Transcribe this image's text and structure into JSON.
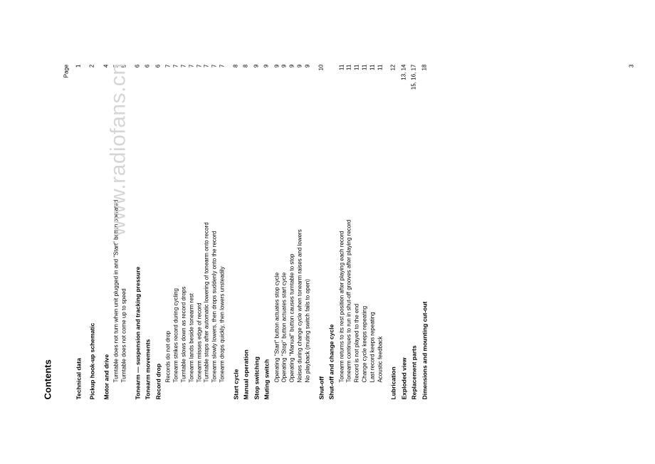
{
  "title": "Contents",
  "page_label": "Page",
  "watermark": "www.radiofans.cn",
  "footer_page": "3",
  "entries": [
    {
      "label": "Technical data",
      "page": "1",
      "cls": "bold",
      "gap": "m"
    },
    {
      "label": "Pickup hook-up schematic",
      "page": "2",
      "cls": "bold",
      "gap": "m"
    },
    {
      "label": "Motor and drive",
      "page": "4",
      "cls": "bold",
      "gap": "m"
    },
    {
      "label": "Turntable does not turn when unit plugged in and \"Start\" button operated",
      "page": "5",
      "cls": "indent1",
      "gap": "s"
    },
    {
      "label": "Turntable does not come up to speed",
      "page": "5",
      "cls": "indent1",
      "gap": ""
    },
    {
      "label": "Tonearm — suspension and tracking pressure",
      "page": "6",
      "cls": "bold",
      "gap": "m"
    },
    {
      "label": "Tonearm movements",
      "page": "6",
      "cls": "bold",
      "gap": "s"
    },
    {
      "label": "Record drop",
      "page": "6",
      "cls": "bold",
      "gap": "s"
    },
    {
      "label": "Records do not drop",
      "page": "7",
      "cls": "indent1",
      "gap": "s"
    },
    {
      "label": "Tonearm strikes record during cycling",
      "page": "7",
      "cls": "indent1",
      "gap": ""
    },
    {
      "label": "Turntable slows down as record drops",
      "page": "7",
      "cls": "indent1",
      "gap": ""
    },
    {
      "label": "Tonearm lands beside tonearm rest",
      "page": "7",
      "cls": "indent1",
      "gap": ""
    },
    {
      "label": "Tonearm misses edge of record",
      "page": "7",
      "cls": "indent1",
      "gap": ""
    },
    {
      "label": "Turntable stops after automatic lowering of tonearm onto record",
      "page": "7",
      "cls": "indent1",
      "gap": ""
    },
    {
      "label": "Tonearm slowly lowers, then drops suddenly onto the record",
      "page": "7",
      "cls": "indent1",
      "gap": ""
    },
    {
      "label": "Tonearm drops quickly, then lowers unsteadily",
      "page": "7",
      "cls": "indent1",
      "gap": ""
    },
    {
      "label": "Start cycle",
      "page": "8",
      "cls": "bold",
      "gap": "m"
    },
    {
      "label": "Manual operation",
      "page": "8",
      "cls": "bold",
      "gap": "s"
    },
    {
      "label": "Stop switching",
      "page": "9",
      "cls": "bold",
      "gap": "s"
    },
    {
      "label": "Muting switch",
      "page": "9",
      "cls": "bold",
      "gap": "s"
    },
    {
      "label": "Operating \"Start\" button actuates stop cycle",
      "page": "9",
      "cls": "indent1",
      "gap": "s"
    },
    {
      "label": "Operating \"Stop\" button actuates start cycle",
      "page": "9",
      "cls": "indent1",
      "gap": ""
    },
    {
      "label": "Operating \"Manual\" button causes turntable to stop",
      "page": "9",
      "cls": "indent1",
      "gap": ""
    },
    {
      "label": "Noises during change cycle when tonearm raises and lowers",
      "page": "9",
      "cls": "indent1",
      "gap": ""
    },
    {
      "label": "No playback (muting switch fails to open)",
      "page": "9",
      "cls": "indent1",
      "gap": ""
    },
    {
      "label": "Shut-off",
      "page": "10",
      "cls": "bold",
      "gap": "m"
    },
    {
      "label": "Shut-off and change cycle",
      "page": "",
      "cls": "bold",
      "gap": "s"
    },
    {
      "label": "Tonearm returns to its rest position after playing each record",
      "page": "11",
      "cls": "indent1",
      "gap": "s"
    },
    {
      "label": "Tonearm continues to run in shut-off grooves after playing record",
      "page": "11",
      "cls": "indent1",
      "gap": ""
    },
    {
      "label": "Record is not played to the end",
      "page": "11",
      "cls": "indent1",
      "gap": ""
    },
    {
      "label": "Change cycle keeps repeating",
      "page": "11",
      "cls": "indent1",
      "gap": ""
    },
    {
      "label": "Last record keeps repeating",
      "page": "11",
      "cls": "indent1",
      "gap": ""
    },
    {
      "label": "Acoustic feedback",
      "page": "11",
      "cls": "indent1",
      "gap": ""
    },
    {
      "label": "Lubrication",
      "page": "12",
      "cls": "bold",
      "gap": "m"
    },
    {
      "label": "Exploded view",
      "page": "13, 14",
      "cls": "bold",
      "gap": "s"
    },
    {
      "label": "Replacement parts",
      "page": "15, 16, 17",
      "cls": "bold",
      "gap": "s"
    },
    {
      "label": "Dimensions and mounting cut-out",
      "page": "18",
      "cls": "bold",
      "gap": "s"
    }
  ]
}
